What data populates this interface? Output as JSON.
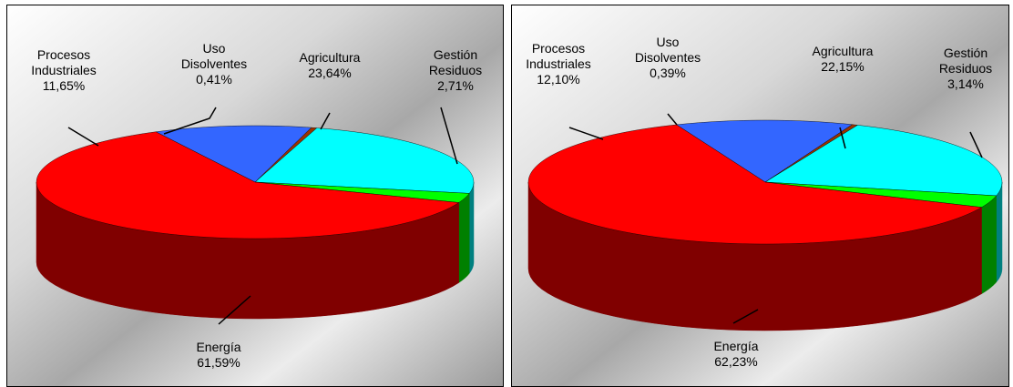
{
  "chart_data": [
    {
      "type": "pie3d",
      "categories": [
        "Procesos Industriales",
        "Uso Disolventes",
        "Agricultura",
        "Gestión Residuos",
        "Energía"
      ],
      "values": [
        11.65,
        0.41,
        23.64,
        2.71,
        61.59
      ],
      "value_labels": [
        "11,65%",
        "0,41%",
        "23,64%",
        "2,71%",
        "61,59%"
      ],
      "colors": [
        "#3366ff",
        "#993300",
        "#00ffff",
        "#00ff00",
        "#ff0000"
      ]
    },
    {
      "type": "pie3d",
      "categories": [
        "Procesos Industriales",
        "Uso Disolventes",
        "Agricultura",
        "Gestión Residuos",
        "Energía"
      ],
      "values": [
        12.1,
        0.39,
        22.15,
        3.14,
        62.23
      ],
      "value_labels": [
        "12,10%",
        "0,39%",
        "22,15%",
        "3,14%",
        "62,23%"
      ],
      "colors": [
        "#3366ff",
        "#993300",
        "#00ffff",
        "#00ff00",
        "#ff0000"
      ]
    }
  ]
}
